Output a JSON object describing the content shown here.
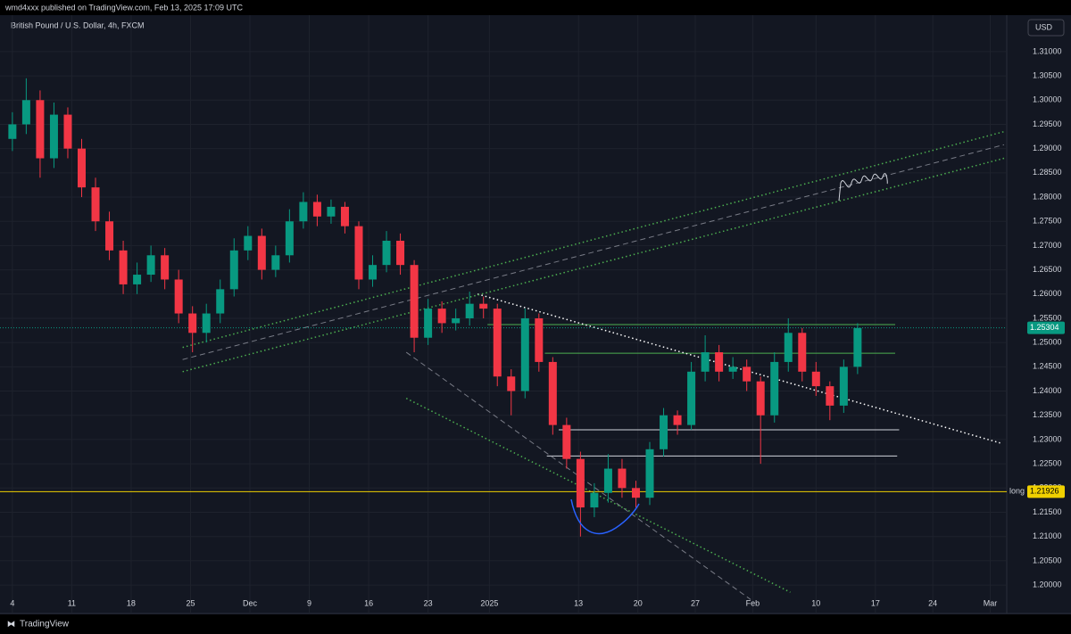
{
  "header": {
    "publisher": "wmd4xxx published on TradingView.com, Feb 13, 2025 17:09 UTC",
    "symbol": "British Pound / U.S. Dollar, 4h, FXCM",
    "currency": "USD",
    "brand": "TradingView"
  },
  "chart_data": {
    "type": "candlestick",
    "up_color": "#089981",
    "down_color": "#f23645",
    "grid": true,
    "xlim": [
      -4,
      501
    ],
    "xticks": [
      {
        "value": 0,
        "label": "4"
      },
      {
        "value": 30,
        "label": "11"
      },
      {
        "value": 60,
        "label": "18"
      },
      {
        "value": 90,
        "label": "25"
      },
      {
        "value": 120,
        "label": "Dec"
      },
      {
        "value": 150,
        "label": "9"
      },
      {
        "value": 180,
        "label": "16"
      },
      {
        "value": 210,
        "label": "23"
      },
      {
        "value": 241,
        "label": "2025"
      },
      {
        "value": 286,
        "label": "13"
      },
      {
        "value": 316,
        "label": "20"
      },
      {
        "value": 345,
        "label": "27"
      },
      {
        "value": 374,
        "label": "Feb"
      },
      {
        "value": 406,
        "label": "10"
      },
      {
        "value": 436,
        "label": "17"
      },
      {
        "value": 465,
        "label": "24"
      },
      {
        "value": 494,
        "label": "Mar"
      }
    ],
    "ylim": [
      1.19468,
      1.31752
    ],
    "yticks": [
      {
        "value": 1.2,
        "label": "1.20000"
      },
      {
        "value": 1.205,
        "label": "1.20500"
      },
      {
        "value": 1.21,
        "label": "1.21000"
      },
      {
        "value": 1.215,
        "label": "1.21500"
      },
      {
        "value": 1.22,
        "label": "1.22000"
      },
      {
        "value": 1.225,
        "label": "1.22500"
      },
      {
        "value": 1.23,
        "label": "1.23000"
      },
      {
        "value": 1.235,
        "label": "1.23500"
      },
      {
        "value": 1.24,
        "label": "1.24000"
      },
      {
        "value": 1.245,
        "label": "1.24500"
      },
      {
        "value": 1.25,
        "label": "1.25000"
      },
      {
        "value": 1.255,
        "label": "1.25500"
      },
      {
        "value": 1.26,
        "label": "1.26000"
      },
      {
        "value": 1.265,
        "label": "1.26500"
      },
      {
        "value": 1.27,
        "label": "1.27000"
      },
      {
        "value": 1.275,
        "label": "1.27500"
      },
      {
        "value": 1.28,
        "label": "1.28000"
      },
      {
        "value": 1.285,
        "label": "1.28500"
      },
      {
        "value": 1.29,
        "label": "1.29000"
      },
      {
        "value": 1.295,
        "label": "1.29500"
      },
      {
        "value": 1.3,
        "label": "1.30000"
      },
      {
        "value": 1.305,
        "label": "1.30500"
      },
      {
        "value": 1.31,
        "label": "1.31000"
      }
    ],
    "x": [
      0,
      7,
      14,
      21,
      28,
      35,
      42,
      49,
      56,
      63,
      70,
      77,
      84,
      91,
      98,
      105,
      112,
      119,
      126,
      133,
      140,
      147,
      154,
      161,
      168,
      175,
      182,
      189,
      196,
      203,
      210,
      217,
      224,
      231,
      238,
      245,
      252,
      259,
      266,
      273,
      280,
      287,
      294,
      301,
      308,
      315,
      322,
      329,
      336,
      343,
      350,
      357,
      364,
      371,
      378,
      385,
      392,
      399,
      406,
      413,
      420,
      427
    ],
    "open": [
      1.292,
      1.295,
      1.3,
      1.288,
      1.297,
      1.29,
      1.282,
      1.275,
      1.269,
      1.262,
      1.264,
      1.268,
      1.263,
      1.256,
      1.252,
      1.256,
      1.261,
      1.269,
      1.272,
      1.265,
      1.268,
      1.275,
      1.279,
      1.276,
      1.278,
      1.274,
      1.263,
      1.266,
      1.271,
      1.266,
      1.251,
      1.257,
      1.254,
      1.255,
      1.258,
      1.257,
      1.243,
      1.24,
      1.255,
      1.246,
      1.233,
      1.226,
      1.216,
      1.219,
      1.224,
      1.22,
      1.218,
      1.228,
      1.235,
      1.233,
      1.244,
      1.248,
      1.244,
      1.245,
      1.242,
      1.235,
      1.246,
      1.252,
      1.244,
      1.241,
      1.237,
      1.245
    ],
    "high": [
      1.2975,
      1.3045,
      1.302,
      1.2995,
      1.2985,
      1.292,
      1.284,
      1.277,
      1.271,
      1.2665,
      1.27,
      1.2695,
      1.265,
      1.2575,
      1.258,
      1.263,
      1.2715,
      1.274,
      1.2735,
      1.27,
      1.2775,
      1.281,
      1.2805,
      1.2795,
      1.279,
      1.275,
      1.268,
      1.273,
      1.2725,
      1.267,
      1.259,
      1.2585,
      1.257,
      1.2605,
      1.2595,
      1.258,
      1.2445,
      1.257,
      1.256,
      1.247,
      1.2345,
      1.2275,
      1.221,
      1.227,
      1.226,
      1.2215,
      1.2295,
      1.2365,
      1.236,
      1.246,
      1.2515,
      1.2495,
      1.247,
      1.2465,
      1.243,
      1.248,
      1.255,
      1.253,
      1.246,
      1.242,
      1.2465,
      1.254
    ],
    "low": [
      1.2895,
      1.293,
      1.284,
      1.286,
      1.288,
      1.28,
      1.273,
      1.267,
      1.26,
      1.26,
      1.2625,
      1.261,
      1.254,
      1.248,
      1.25,
      1.254,
      1.2595,
      1.267,
      1.263,
      1.2635,
      1.2665,
      1.2735,
      1.274,
      1.2745,
      1.2725,
      1.261,
      1.2615,
      1.2645,
      1.264,
      1.248,
      1.2495,
      1.252,
      1.2525,
      1.2535,
      1.255,
      1.241,
      1.235,
      1.2385,
      1.244,
      1.231,
      1.224,
      1.21,
      1.214,
      1.217,
      1.218,
      1.216,
      1.2165,
      1.2265,
      1.231,
      1.232,
      1.242,
      1.242,
      1.2425,
      1.24,
      1.225,
      1.2335,
      1.244,
      1.242,
      1.239,
      1.234,
      1.2355,
      1.2435
    ],
    "close": [
      1.295,
      1.3,
      1.288,
      1.297,
      1.29,
      1.282,
      1.275,
      1.269,
      1.262,
      1.264,
      1.268,
      1.263,
      1.256,
      1.252,
      1.256,
      1.261,
      1.269,
      1.272,
      1.265,
      1.268,
      1.275,
      1.279,
      1.276,
      1.278,
      1.274,
      1.263,
      1.266,
      1.271,
      1.266,
      1.251,
      1.257,
      1.254,
      1.255,
      1.258,
      1.257,
      1.243,
      1.24,
      1.255,
      1.246,
      1.233,
      1.226,
      1.216,
      1.219,
      1.224,
      1.22,
      1.218,
      1.228,
      1.235,
      1.233,
      1.244,
      1.248,
      1.244,
      1.245,
      1.242,
      1.235,
      1.246,
      1.252,
      1.244,
      1.241,
      1.237,
      1.245,
      1.253
    ],
    "drawings": [
      {
        "style": "solid",
        "color": "#4caf50",
        "x": [
          240,
          446
        ],
        "y": [
          1.2537,
          1.2537
        ]
      },
      {
        "style": "solid",
        "color": "#4caf50",
        "x": [
          269,
          446
        ],
        "y": [
          1.2478,
          1.2478
        ]
      },
      {
        "style": "solid",
        "color": "#d1d4dc",
        "x": [
          276,
          448
        ],
        "y": [
          1.232,
          1.232
        ]
      },
      {
        "style": "solid",
        "color": "#d1d4dc",
        "x": [
          270,
          447
        ],
        "y": [
          1.2266,
          1.2266
        ]
      },
      {
        "style": "dotted",
        "color": "#ffffff",
        "x": [
          235,
          499
        ],
        "y": [
          1.26,
          1.2293
        ]
      },
      {
        "style": "dotted",
        "color": "#4caf50",
        "x": [
          86,
          501
        ],
        "y": [
          1.244,
          1.288
        ]
      },
      {
        "style": "dashed",
        "color": "#787b86",
        "x": [
          86,
          501
        ],
        "y": [
          1.2465,
          1.2908
        ]
      },
      {
        "style": "dotted",
        "color": "#4caf50",
        "x": [
          86,
          501
        ],
        "y": [
          1.249,
          1.2935
        ]
      },
      {
        "style": "dashed",
        "color": "#787b86",
        "x": [
          199,
          373
        ],
        "y": [
          1.248,
          1.197
        ]
      },
      {
        "style": "dotted",
        "color": "#4caf50",
        "x": [
          199,
          393
        ],
        "y": [
          1.2385,
          1.1985
        ]
      }
    ],
    "level": {
      "value": 1.21926,
      "note": "long",
      "color": "#f0d000"
    },
    "last_price": {
      "value": 1.25304,
      "color": "#089981"
    }
  }
}
